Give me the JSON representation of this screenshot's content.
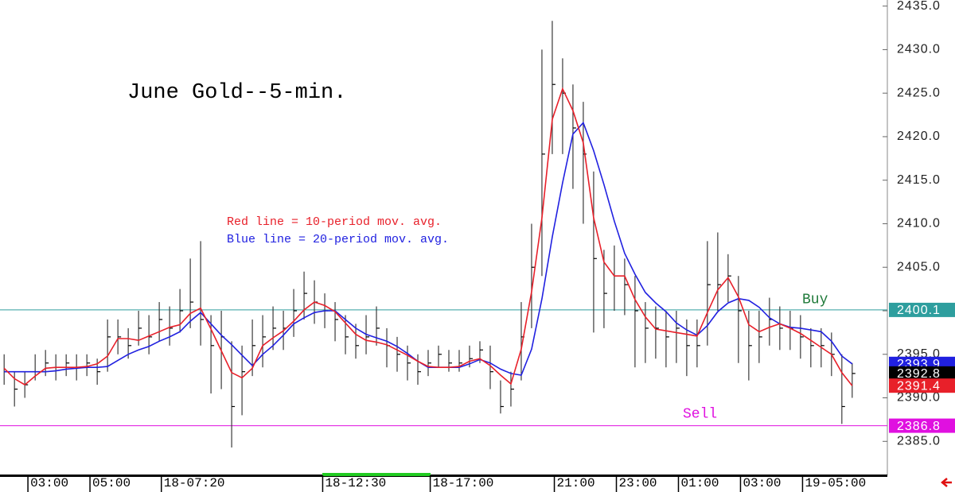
{
  "chart_data": {
    "type": "ohlc",
    "title": "June Gold--5-min.",
    "annotations": [
      {
        "text": "Red line = 10-period mov. avg.",
        "color": "#e8202a"
      },
      {
        "text": "Blue line = 20-period mov. avg.",
        "color": "#2020e0"
      }
    ],
    "bar_color": "#3a3a3a",
    "close_color": "#000000",
    "high": [
      2395,
      2393,
      2393,
      2395,
      2395.5,
      2395,
      2395,
      2395,
      2395,
      2394.5,
      2399,
      2399,
      2398,
      2400,
      2399.5,
      2401,
      2400.5,
      2402.5,
      2406,
      2408,
      2399.5,
      2400,
      2396.5,
      2396,
      2399,
      2399.5,
      2400.5,
      2400,
      2402.5,
      2404.5,
      2403.5,
      2402,
      2401,
      2399.5,
      2398.5,
      2399.5,
      2400.5,
      2398,
      2397,
      2396,
      2395,
      2395.5,
      2396,
      2395.5,
      2395.5,
      2396,
      2396.5,
      2396,
      2392,
      2393,
      2401,
      2410,
      2430,
      2433.3,
      2429,
      2426,
      2424,
      2416,
      2407,
      2407.5,
      2406,
      2404,
      2401,
      2400.5,
      2400,
      2400,
      2399,
      2399,
      2408,
      2409,
      2406.5,
      2404,
      2400,
      2400,
      2401.5,
      2400.5,
      2400,
      2399.5,
      2398,
      2398,
      2397.5,
      2395,
      2394
    ],
    "low": [
      2391.5,
      2389,
      2390,
      2392,
      2392.5,
      2392,
      2392.5,
      2392,
      2392.5,
      2391.5,
      2393,
      2395,
      2394.5,
      2396,
      2395,
      2396.5,
      2396,
      2397.5,
      2398,
      2396,
      2390.5,
      2391,
      2384.3,
      2388,
      2392.5,
      2393.5,
      2395.5,
      2395.5,
      2397,
      2399,
      2398.5,
      2398,
      2396.5,
      2395,
      2394.5,
      2395,
      2396,
      2393.5,
      2393,
      2392,
      2391.5,
      2392.5,
      2393.5,
      2393,
      2393,
      2393.5,
      2394,
      2391,
      2388.2,
      2389,
      2392,
      2398,
      2404,
      2418,
      2418,
      2414,
      2410,
      2397.5,
      2398,
      2400,
      2399.5,
      2393.5,
      2394,
      2394.5,
      2393.5,
      2394,
      2392.5,
      2393.5,
      2396,
      2400,
      2401,
      2394,
      2392,
      2394,
      2396,
      2395.5,
      2395.5,
      2394.5,
      2393.5,
      2393.5,
      2392.5,
      2387,
      2390
    ],
    "close": [
      2393,
      2391,
      2391.5,
      2393,
      2394,
      2393.5,
      2394,
      2393.5,
      2394,
      2393,
      2397,
      2397,
      2396,
      2398,
      2397,
      2399,
      2398,
      2400,
      2401,
      2399,
      2396,
      2397,
      2389,
      2393,
      2396,
      2397,
      2398,
      2398,
      2400,
      2402,
      2401,
      2400,
      2399,
      2397,
      2396,
      2397,
      2398,
      2396,
      2395,
      2394,
      2393,
      2394,
      2395,
      2394,
      2394,
      2394.5,
      2395.5,
      2393,
      2389,
      2391,
      2397,
      2405,
      2418,
      2426,
      2425,
      2421,
      2418,
      2406,
      2402,
      2404,
      2403,
      2400,
      2398,
      2398,
      2397,
      2398,
      2396,
      2396,
      2403,
      2403,
      2404,
      2400,
      2396,
      2397,
      2399,
      2398,
      2398,
      2397,
      2396,
      2396,
      2395,
      2389,
      2392.8
    ],
    "series": [
      {
        "color": "#2020e0",
        "values": [
          2393,
          2393,
          2393,
          2393,
          2393,
          2393.1,
          2393.3,
          2393.4,
          2393.5,
          2393.5,
          2393.6,
          2394.3,
          2395,
          2395.5,
          2395.9,
          2396.5,
          2397,
          2397.6,
          2398.8,
          2399.8,
          2398.5,
          2397.2,
          2396.1,
          2394.9,
          2393.7,
          2395,
          2396,
          2397.2,
          2398.5,
          2399.2,
          2399.8,
          2400,
          2400,
          2399,
          2398,
          2397.3,
          2396.9,
          2396.5,
          2395.9,
          2395.1,
          2394.2,
          2393.5,
          2393.5,
          2393.5,
          2393.5,
          2393.9,
          2394.4,
          2394,
          2393.3,
          2392.8,
          2392.6,
          2395.6,
          2401.4,
          2408.5,
          2414.7,
          2420.3,
          2421.6,
          2418.4,
          2414.5,
          2410.3,
          2406.6,
          2404.2,
          2402.1,
          2400.9,
          2399.9,
          2398.6,
          2397.8,
          2397.2,
          2398.3,
          2399.9,
          2400.9,
          2401.4,
          2401.2,
          2400.4,
          2399.2,
          2398.5,
          2398.1,
          2398,
          2397.8,
          2397.6,
          2396.5,
          2394.8,
          2393.9
        ]
      },
      {
        "color": "#e8202a",
        "values": [
          2393.4,
          2392.2,
          2391.5,
          2392.5,
          2393.4,
          2393.5,
          2393.5,
          2393.5,
          2393.6,
          2393.9,
          2394.8,
          2396.8,
          2396.8,
          2396.6,
          2397.1,
          2397.6,
          2398.1,
          2398.4,
          2399.7,
          2400.3,
          2397.9,
          2395.4,
          2392.9,
          2392.3,
          2393.4,
          2396,
          2396.9,
          2397.7,
          2398.8,
          2400.1,
          2401,
          2400.6,
          2399.9,
          2398.6,
          2397.3,
          2396.6,
          2396.4,
          2396.1,
          2395.5,
          2394.9,
          2394.2,
          2393.6,
          2393.5,
          2393.5,
          2393.6,
          2394.2,
          2394.5,
          2393.7,
          2392.6,
          2391.6,
          2395.6,
          2402.2,
          2410.7,
          2422,
          2425.5,
          2423,
          2419.3,
          2410.7,
          2405.6,
          2404,
          2404,
          2401.3,
          2399.3,
          2397.9,
          2397.7,
          2397.5,
          2397.3,
          2397.1,
          2399.8,
          2402.4,
          2403.8,
          2401.6,
          2398.4,
          2397.6,
          2398.1,
          2398.5,
          2398,
          2397.4,
          2396.6,
          2395.8,
          2395,
          2392.9,
          2391.4
        ]
      }
    ],
    "hlines": [
      {
        "name": "Buy",
        "value": 2400.1,
        "color": "#2e9e9e",
        "text_color": "#1f7a3a"
      },
      {
        "name": "Sell",
        "value": 2386.8,
        "color": "#e010e0",
        "text_color": "#e010e0"
      }
    ],
    "ylim": [
      2381.1,
      2435.7
    ],
    "yticks": [
      {
        "value": 2385,
        "label": "2385.0"
      },
      {
        "value": 2390,
        "label": "2390.0"
      },
      {
        "value": 2395,
        "label": "2395.0"
      },
      {
        "value": 2400,
        "label": "2400.0"
      },
      {
        "value": 2405,
        "label": "2405.0"
      },
      {
        "value": 2410,
        "label": "2410.0"
      },
      {
        "value": 2415,
        "label": "2415.0"
      },
      {
        "value": 2420,
        "label": "2420.0"
      },
      {
        "value": 2425,
        "label": "2425.0"
      },
      {
        "value": 2430,
        "label": "2430.0"
      },
      {
        "value": 2435,
        "label": "2435.0"
      }
    ],
    "xlim": [
      -0.4,
      85.4
    ],
    "xticks": [
      {
        "value": 2.3,
        "label": "03:00"
      },
      {
        "value": 8.3,
        "label": "05:00"
      },
      {
        "value": 15.2,
        "label": "18-07:20"
      },
      {
        "value": 30.8,
        "label": "18-12:30"
      },
      {
        "value": 41.2,
        "label": "18-17:00"
      },
      {
        "value": 53.2,
        "label": "21:00"
      },
      {
        "value": 59.2,
        "label": "23:00"
      },
      {
        "value": 65.2,
        "label": "01:00"
      },
      {
        "value": 71.2,
        "label": "03:00"
      },
      {
        "value": 77.2,
        "label": "19-05:00"
      }
    ]
  }
}
